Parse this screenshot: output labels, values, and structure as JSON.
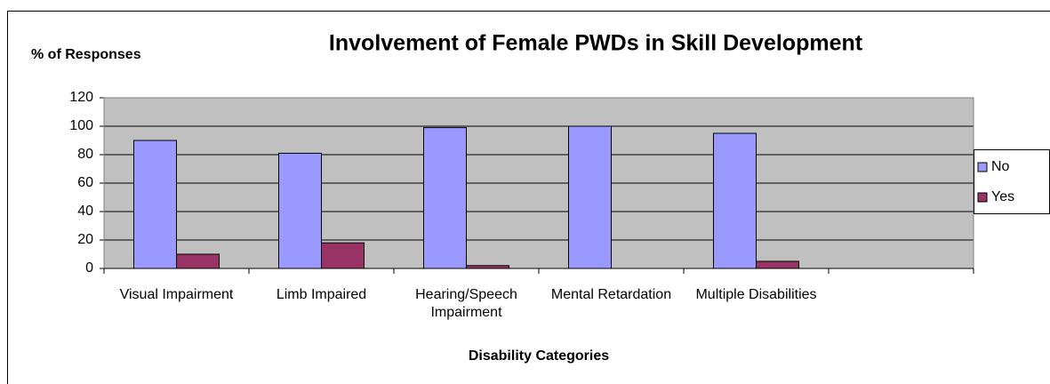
{
  "chart_data": {
    "type": "bar",
    "title": "Involvement of Female PWDs in Skill Development",
    "y_label": "% of Responses",
    "x_label": "Disability Categories",
    "categories": [
      "Visual Impairment",
      "Limb Impaired",
      "Hearing/Speech Impairment",
      "Mental Retardation",
      "Multiple Disabilities",
      null
    ],
    "series": [
      {
        "name": "No",
        "color": "#9999ff",
        "values": [
          90,
          81,
          99,
          100,
          95,
          null
        ]
      },
      {
        "name": "Yes",
        "color": "#993366",
        "values": [
          10,
          18,
          2,
          0,
          5,
          null
        ]
      }
    ],
    "ylim": [
      0,
      120
    ],
    "yticks": [
      0,
      20,
      40,
      60,
      80,
      100,
      120
    ],
    "grid": true,
    "legend": "right",
    "plot_background": "#c0c0c0"
  }
}
